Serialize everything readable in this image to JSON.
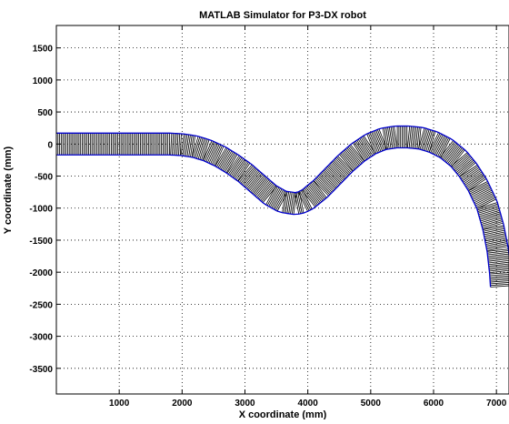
{
  "chart_data": {
    "type": "line",
    "title": "MATLAB Simulator for P3-DX robot",
    "xlabel": "X coordinate (mm)",
    "ylabel": "Y coordinate (mm)",
    "xlim": [
      0,
      7200
    ],
    "ylim": [
      -3900,
      1850
    ],
    "xticks": [
      1000,
      2000,
      3000,
      4000,
      5000,
      6000,
      7000
    ],
    "yticks": [
      1500,
      1000,
      500,
      0,
      -500,
      -1000,
      -1500,
      -2000,
      -2500,
      -3000,
      -3500
    ],
    "grid": true,
    "robot_width_mm": 340,
    "colors": {
      "edge": "#0000cc",
      "body": "#000000",
      "grid": "#000000"
    },
    "series": [
      {
        "x": [
          0,
          200,
          400,
          600,
          800,
          1000,
          1200,
          1400,
          1600,
          1800,
          2000,
          2200,
          2400,
          2600,
          2800,
          3000,
          3200,
          3400,
          3600,
          3800,
          3900,
          4000,
          4200,
          4400,
          4600,
          4800,
          5000,
          5200,
          5400,
          5600,
          5800,
          6000,
          6200,
          6400,
          6550,
          6700,
          6850,
          6950,
          7020,
          7060,
          7075
        ],
        "y": [
          0,
          0,
          0,
          0,
          0,
          0,
          0,
          0,
          0,
          0,
          -10,
          -40,
          -100,
          -190,
          -310,
          -450,
          -620,
          -790,
          -900,
          -930,
          -910,
          -860,
          -700,
          -500,
          -300,
          -130,
          0,
          80,
          110,
          110,
          90,
          30,
          -70,
          -230,
          -410,
          -640,
          -950,
          -1300,
          -1650,
          -2000,
          -2220
        ]
      }
    ]
  }
}
